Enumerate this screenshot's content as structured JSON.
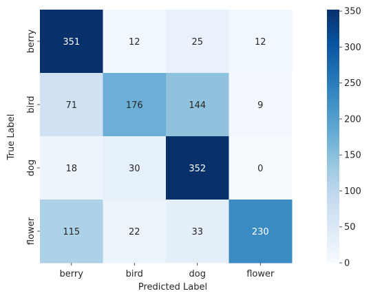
{
  "chart_data": {
    "type": "heatmap",
    "title": "",
    "xlabel": "Predicted Label",
    "ylabel": "True Label",
    "x_categories": [
      "berry",
      "bird",
      "dog",
      "flower"
    ],
    "y_categories": [
      "berry",
      "bird",
      "dog",
      "flower"
    ],
    "values": [
      [
        351,
        12,
        25,
        12
      ],
      [
        71,
        176,
        144,
        9
      ],
      [
        18,
        30,
        352,
        0
      ],
      [
        115,
        22,
        33,
        230
      ]
    ],
    "colormap": "Blues",
    "vmin": 0,
    "vmax": 352,
    "colorbar_ticks": [
      0,
      50,
      100,
      150,
      200,
      250,
      300,
      350
    ]
  }
}
